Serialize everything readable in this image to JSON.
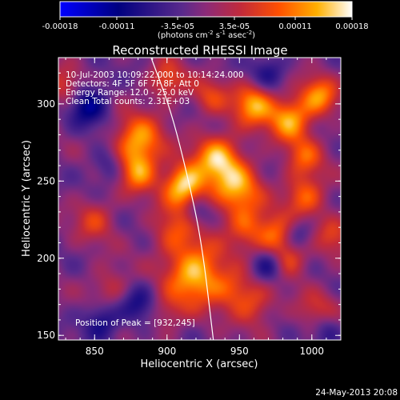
{
  "chart_data": {
    "type": "heatmap",
    "title": "Reconstructed RHESSI Image",
    "xlabel": "Heliocentric X (arcsec)",
    "ylabel": "Heliocentric Y (arcsec)",
    "xlim": [
      825,
      1020
    ],
    "ylim": [
      147,
      330
    ],
    "x_ticks": [
      "850",
      "900",
      "950",
      "1000"
    ],
    "y_ticks": [
      "150",
      "200",
      "250",
      "300"
    ],
    "colorbar": {
      "ticks": [
        "-0.00018",
        "-0.00011",
        "-3.5e-05",
        "3.5e-05",
        "0.00011",
        "0.00018"
      ],
      "range": [
        -0.00018,
        0.00018
      ],
      "unit_text": "(photons cm",
      "unit_sup1": "-2",
      "unit_mid": " s",
      "unit_sup2": "-1",
      "unit_mid2": " asec",
      "unit_sup3": "-2",
      "unit_end": ")"
    },
    "info_lines": [
      "10-Jul-2003 10:09:22.000 to 10:14:24.000",
      "Detectors: 4F 5F 6F 7F 8F, Att 0",
      "Energy Range: 12.0 - 25.0 keV",
      "Clean    Total counts: 2.31E+03"
    ],
    "peak_label": "Position of Peak = [932,245]",
    "peak": {
      "x": 932,
      "y": 245
    },
    "limb_curve": [
      [
        889,
        330
      ],
      [
        903,
        295
      ],
      [
        915,
        250
      ],
      [
        924,
        210
      ],
      [
        932,
        147
      ]
    ],
    "sources": [
      {
        "x": 912,
        "y": 247,
        "a": 1.0,
        "s": 10
      },
      {
        "x": 920,
        "y": 190,
        "a": 0.9,
        "s": 14
      },
      {
        "x": 905,
        "y": 218,
        "a": 0.45,
        "s": 11
      },
      {
        "x": 935,
        "y": 265,
        "a": 0.8,
        "s": 11
      },
      {
        "x": 948,
        "y": 245,
        "a": 0.75,
        "s": 12
      },
      {
        "x": 960,
        "y": 300,
        "a": 0.8,
        "s": 10
      },
      {
        "x": 985,
        "y": 290,
        "a": 0.8,
        "s": 10
      },
      {
        "x": 1005,
        "y": 305,
        "a": 0.7,
        "s": 9
      },
      {
        "x": 880,
        "y": 275,
        "a": 0.8,
        "s": 12
      },
      {
        "x": 880,
        "y": 255,
        "a": 0.6,
        "s": 9
      },
      {
        "x": 955,
        "y": 220,
        "a": 0.5,
        "s": 10
      },
      {
        "x": 975,
        "y": 215,
        "a": 0.6,
        "s": 9
      },
      {
        "x": 995,
        "y": 240,
        "a": 0.6,
        "s": 10
      },
      {
        "x": 985,
        "y": 200,
        "a": 0.5,
        "s": 9
      },
      {
        "x": 960,
        "y": 170,
        "a": 0.45,
        "s": 10
      },
      {
        "x": 945,
        "y": 180,
        "a": 0.4,
        "s": 9
      },
      {
        "x": 1005,
        "y": 165,
        "a": 0.4,
        "s": 10
      },
      {
        "x": 995,
        "y": 265,
        "a": 0.5,
        "s": 9
      },
      {
        "x": 850,
        "y": 225,
        "a": 0.4,
        "s": 10
      },
      {
        "x": 830,
        "y": 310,
        "a": 0.45,
        "s": 9
      },
      {
        "x": 900,
        "y": 315,
        "a": 0.5,
        "s": 9
      },
      {
        "x": 860,
        "y": 180,
        "a": 0.35,
        "s": 10
      },
      {
        "x": 900,
        "y": 165,
        "a": 0.3,
        "s": 9
      },
      {
        "x": 930,
        "y": 305,
        "a": 0.4,
        "s": 9
      },
      {
        "x": 1015,
        "y": 215,
        "a": 0.4,
        "s": 9
      },
      {
        "x": 845,
        "y": 300,
        "a": -0.6,
        "s": 10
      },
      {
        "x": 855,
        "y": 160,
        "a": -0.5,
        "s": 9
      },
      {
        "x": 880,
        "y": 170,
        "a": -0.4,
        "s": 9
      },
      {
        "x": 970,
        "y": 195,
        "a": -0.5,
        "s": 8
      },
      {
        "x": 990,
        "y": 215,
        "a": -0.4,
        "s": 8
      },
      {
        "x": 970,
        "y": 320,
        "a": -0.4,
        "s": 9
      },
      {
        "x": 1010,
        "y": 155,
        "a": -0.4,
        "s": 8
      },
      {
        "x": 920,
        "y": 230,
        "a": -0.35,
        "s": 7
      },
      {
        "x": 860,
        "y": 260,
        "a": -0.35,
        "s": 8
      }
    ]
  }
}
